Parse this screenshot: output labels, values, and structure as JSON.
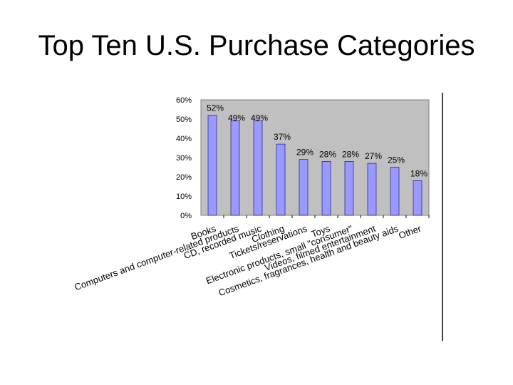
{
  "slide": {
    "title": "Top Ten U.S. Purchase Categories"
  },
  "chart_data": {
    "type": "bar",
    "title": "",
    "xlabel": "",
    "ylabel": "",
    "ylim": [
      0,
      60
    ],
    "yticks": [
      "0%",
      "10%",
      "20%",
      "30%",
      "40%",
      "50%",
      "60%"
    ],
    "grid": false,
    "legend": "none",
    "categories": [
      "Books",
      "Computers and computer-related products",
      "CD, recorded music",
      "Clothing",
      "Tickets/reservations",
      "Toys",
      "Electronic products, small \"consumer\"",
      "Videos, filmed entertainment",
      "Cosmetics, fragrances, health and beauty aids",
      "Other"
    ],
    "values": [
      52,
      49,
      49,
      37,
      29,
      28,
      28,
      27,
      25,
      18
    ],
    "data_labels": [
      "52%",
      "49%",
      "49%",
      "37%",
      "29%",
      "28%",
      "28%",
      "27%",
      "25%",
      "18%"
    ],
    "colors": {
      "bar_fill": "#9999FF",
      "bar_stroke": "#000080",
      "plot_background": "#C0C0C0",
      "text": "#000000"
    }
  }
}
